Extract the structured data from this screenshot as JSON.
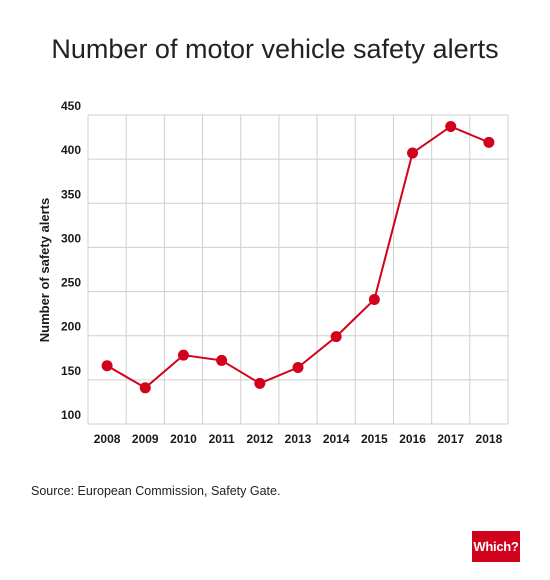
{
  "chart_data": {
    "type": "line",
    "title": "Number of motor vehicle safety alerts",
    "xlabel": "",
    "ylabel": "Number of safety alerts",
    "categories": [
      "2008",
      "2009",
      "2010",
      "2011",
      "2012",
      "2013",
      "2014",
      "2015",
      "2016",
      "2017",
      "2018"
    ],
    "series": [
      {
        "values": [
          166,
          141,
          178,
          172,
          146,
          164,
          199,
          241,
          407,
          437,
          419
        ]
      }
    ],
    "ylim": [
      100,
      450
    ],
    "yticks": [
      100,
      150,
      200,
      250,
      300,
      350,
      400,
      450
    ],
    "grid": true,
    "series_color": "#d1021b"
  },
  "source": "Source: European Commission, Safety Gate.",
  "logo_text": "Which?"
}
